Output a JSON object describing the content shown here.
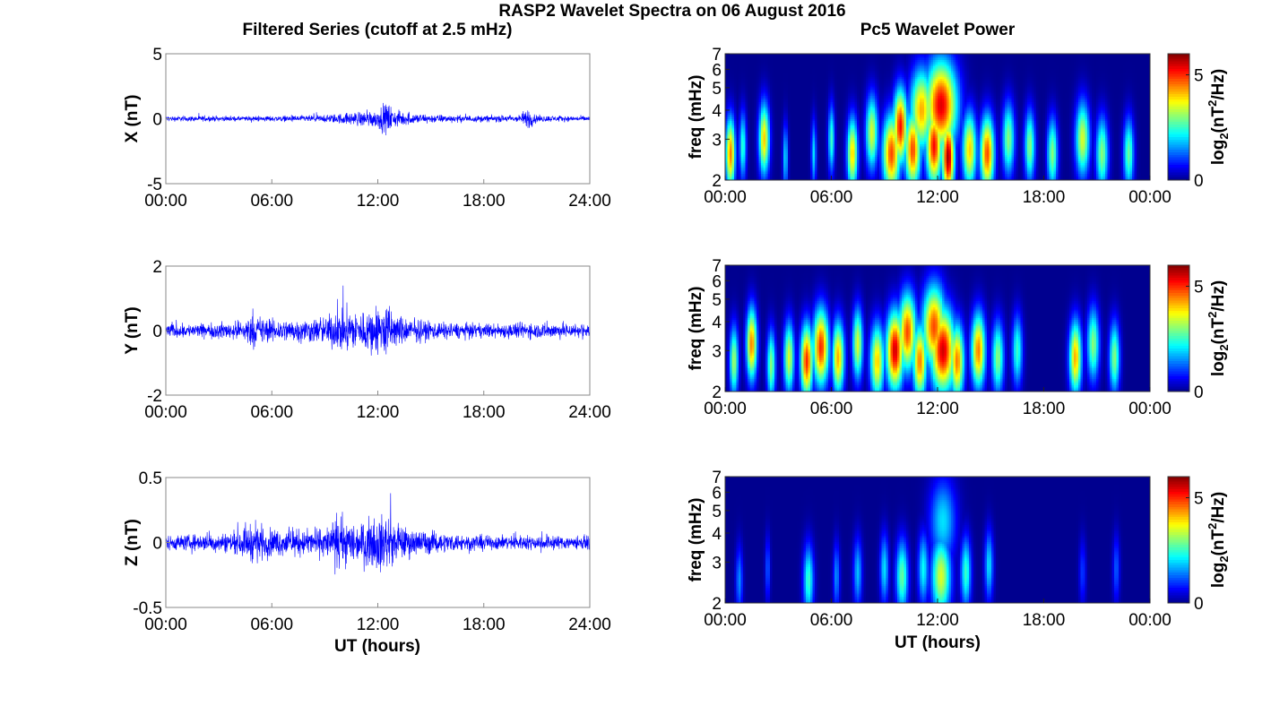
{
  "figure_title": "RASP2 Wavelet Spectra on 06 August 2016",
  "left_column_title": "Filtered Series (cutoff at 2.5 mHz)",
  "right_column_title": "Pc5 Wavelet Power",
  "time_ticks_left": [
    "00:00",
    "06:00",
    "12:00",
    "18:00",
    "24:00"
  ],
  "time_ticks_right": [
    "00:00",
    "06:00",
    "12:00",
    "18:00",
    "00:00"
  ],
  "xlabel": "UT (hours)",
  "freq_label": "freq (mHz)",
  "colorbar_label": "log2(nT2/Hz)",
  "colormap_colors": [
    "#00008f",
    "#0000ff",
    "#00ffff",
    "#ffff00",
    "#ff0000",
    "#800000"
  ],
  "trace_color": "#0000ff",
  "chart_data": [
    {
      "type": "line",
      "panel": "filtered-X",
      "ylabel": "X (nT)",
      "xlim": [
        0,
        24
      ],
      "ylim": [
        -5,
        5
      ],
      "yticks": [
        "5",
        "0",
        "-5"
      ],
      "ytick_values": [
        5,
        0,
        -5
      ],
      "envelope": {
        "hours": [
          0,
          2,
          4,
          6,
          8,
          9,
          10,
          11,
          12,
          12.5,
          13,
          14,
          16,
          18,
          20,
          20.5,
          21,
          22,
          24
        ],
        "amplitude": [
          0.3,
          0.3,
          0.25,
          0.3,
          0.35,
          0.4,
          0.6,
          0.8,
          1.0,
          1.8,
          0.9,
          0.6,
          0.4,
          0.35,
          0.4,
          1.2,
          0.4,
          0.3,
          0.3
        ]
      }
    },
    {
      "type": "line",
      "panel": "filtered-Y",
      "ylabel": "Y (nT)",
      "xlim": [
        0,
        24
      ],
      "ylim": [
        -2,
        2
      ],
      "yticks": [
        "2",
        "0",
        "-2"
      ],
      "ytick_values": [
        2,
        0,
        -2
      ],
      "envelope": {
        "hours": [
          0,
          2,
          4,
          5,
          6,
          8,
          9,
          10,
          11,
          12,
          12.5,
          13,
          14,
          16,
          18,
          20,
          22,
          24
        ],
        "amplitude": [
          0.3,
          0.3,
          0.4,
          0.7,
          0.5,
          0.5,
          0.6,
          1.0,
          0.8,
          1.1,
          1.2,
          0.7,
          0.5,
          0.35,
          0.3,
          0.35,
          0.35,
          0.3
        ]
      }
    },
    {
      "type": "line",
      "panel": "filtered-Z",
      "ylabel": "Z (nT)",
      "xlim": [
        0,
        24
      ],
      "ylim": [
        -0.5,
        0.5
      ],
      "yticks": [
        "0.5",
        "0",
        "-0.5"
      ],
      "ytick_values": [
        0.5,
        0,
        -0.5
      ],
      "envelope": {
        "hours": [
          0,
          2,
          4,
          5,
          6,
          8,
          9,
          10,
          11,
          12,
          12.5,
          13,
          14,
          16,
          18,
          20,
          22,
          24
        ],
        "amplitude": [
          0.08,
          0.09,
          0.12,
          0.22,
          0.15,
          0.14,
          0.16,
          0.26,
          0.2,
          0.3,
          0.32,
          0.2,
          0.15,
          0.1,
          0.08,
          0.08,
          0.08,
          0.07
        ]
      }
    },
    {
      "type": "heatmap",
      "panel": "wavelet-X",
      "ylabel": "freq (mHz)",
      "xlim": [
        0,
        24
      ],
      "ylim": [
        2,
        7
      ],
      "yscale": "log",
      "yticks": [
        "7",
        "6",
        "5",
        "4",
        "3",
        "2"
      ],
      "ytick_values": [
        7,
        6,
        5,
        4,
        3,
        2
      ],
      "colorbar": {
        "range": [
          0,
          6
        ],
        "ticks": [
          "5",
          "0"
        ],
        "tick_values": [
          5,
          0
        ]
      },
      "events": [
        [
          0.3,
          2.6,
          0.55,
          4.5
        ],
        [
          1.0,
          2.8,
          0.4,
          2.5
        ],
        [
          2.2,
          3.0,
          0.6,
          4.0
        ],
        [
          3.4,
          2.5,
          0.3,
          2.0
        ],
        [
          5.0,
          2.6,
          0.3,
          2.0
        ],
        [
          6.0,
          3.0,
          0.4,
          2.5
        ],
        [
          7.2,
          2.6,
          0.6,
          4.0
        ],
        [
          8.3,
          3.2,
          0.7,
          3.5
        ],
        [
          9.4,
          2.6,
          1.0,
          4.8
        ],
        [
          9.9,
          3.4,
          0.8,
          5.2
        ],
        [
          10.6,
          2.7,
          0.9,
          4.8
        ],
        [
          11.1,
          4.0,
          1.3,
          4.2
        ],
        [
          11.8,
          2.8,
          0.9,
          5.2
        ],
        [
          12.2,
          4.2,
          1.8,
          5.4
        ],
        [
          12.6,
          2.5,
          0.7,
          5.8
        ],
        [
          13.8,
          2.7,
          0.8,
          4.0
        ],
        [
          14.8,
          2.6,
          0.8,
          4.8
        ],
        [
          16.0,
          3.0,
          0.7,
          3.0
        ],
        [
          17.2,
          2.8,
          0.6,
          3.0
        ],
        [
          18.5,
          2.6,
          0.6,
          3.0
        ],
        [
          20.2,
          3.0,
          0.8,
          3.5
        ],
        [
          21.3,
          2.6,
          0.7,
          3.0
        ],
        [
          22.8,
          2.6,
          0.6,
          2.8
        ]
      ]
    },
    {
      "type": "heatmap",
      "panel": "wavelet-Y",
      "ylabel": "freq (mHz)",
      "xlim": [
        0,
        24
      ],
      "ylim": [
        2,
        7
      ],
      "yscale": "log",
      "yticks": [
        "7",
        "6",
        "5",
        "4",
        "3",
        "2"
      ],
      "ytick_values": [
        7,
        6,
        5,
        4,
        3,
        2
      ],
      "colorbar": {
        "range": [
          0,
          6
        ],
        "ticks": [
          "5",
          "0"
        ],
        "tick_values": [
          5,
          0
        ]
      },
      "events": [
        [
          0.5,
          2.7,
          0.5,
          3.2
        ],
        [
          1.5,
          3.2,
          0.6,
          4.5
        ],
        [
          2.6,
          2.6,
          0.5,
          3.0
        ],
        [
          3.6,
          2.8,
          0.6,
          3.5
        ],
        [
          4.6,
          2.7,
          0.7,
          5.0
        ],
        [
          5.4,
          3.1,
          0.9,
          5.0
        ],
        [
          6.4,
          2.8,
          0.7,
          4.2
        ],
        [
          7.5,
          3.2,
          0.6,
          3.5
        ],
        [
          8.6,
          2.7,
          0.8,
          4.0
        ],
        [
          9.6,
          3.0,
          1.0,
          5.5
        ],
        [
          10.3,
          3.6,
          1.0,
          4.8
        ],
        [
          11.0,
          2.7,
          0.8,
          4.5
        ],
        [
          11.8,
          3.8,
          1.3,
          4.8
        ],
        [
          12.3,
          3.0,
          1.4,
          5.5
        ],
        [
          13.1,
          2.7,
          0.8,
          4.5
        ],
        [
          14.3,
          3.0,
          0.8,
          4.5
        ],
        [
          15.4,
          2.8,
          0.7,
          3.0
        ],
        [
          16.5,
          3.0,
          0.6,
          2.5
        ],
        [
          19.8,
          2.8,
          0.7,
          4.2
        ],
        [
          20.8,
          3.2,
          0.7,
          3.0
        ],
        [
          22.0,
          2.8,
          0.6,
          3.0
        ]
      ]
    },
    {
      "type": "heatmap",
      "panel": "wavelet-Z",
      "ylabel": "freq (mHz)",
      "xlim": [
        0,
        24
      ],
      "ylim": [
        2,
        7
      ],
      "yscale": "log",
      "yticks": [
        "7",
        "6",
        "5",
        "4",
        "3",
        "2"
      ],
      "ytick_values": [
        7,
        6,
        5,
        4,
        3,
        2
      ],
      "colorbar": {
        "range": [
          0,
          6
        ],
        "ticks": [
          "5",
          "0"
        ],
        "tick_values": [
          5,
          0
        ]
      },
      "events": [
        [
          0.8,
          2.5,
          0.4,
          1.5
        ],
        [
          2.4,
          2.8,
          0.3,
          1.2
        ],
        [
          4.7,
          2.5,
          0.6,
          2.5
        ],
        [
          6.3,
          2.6,
          0.4,
          1.5
        ],
        [
          7.5,
          2.7,
          0.5,
          1.8
        ],
        [
          9.0,
          2.8,
          0.5,
          2.0
        ],
        [
          10.0,
          2.6,
          0.7,
          2.8
        ],
        [
          11.2,
          2.8,
          0.6,
          2.2
        ],
        [
          12.2,
          2.6,
          1.1,
          3.5
        ],
        [
          12.3,
          4.5,
          1.5,
          2.0
        ],
        [
          13.6,
          2.7,
          0.6,
          2.5
        ],
        [
          14.9,
          2.9,
          0.5,
          2.0
        ],
        [
          20.2,
          2.7,
          0.4,
          1.0
        ],
        [
          22.1,
          2.8,
          0.4,
          1.2
        ]
      ]
    }
  ]
}
